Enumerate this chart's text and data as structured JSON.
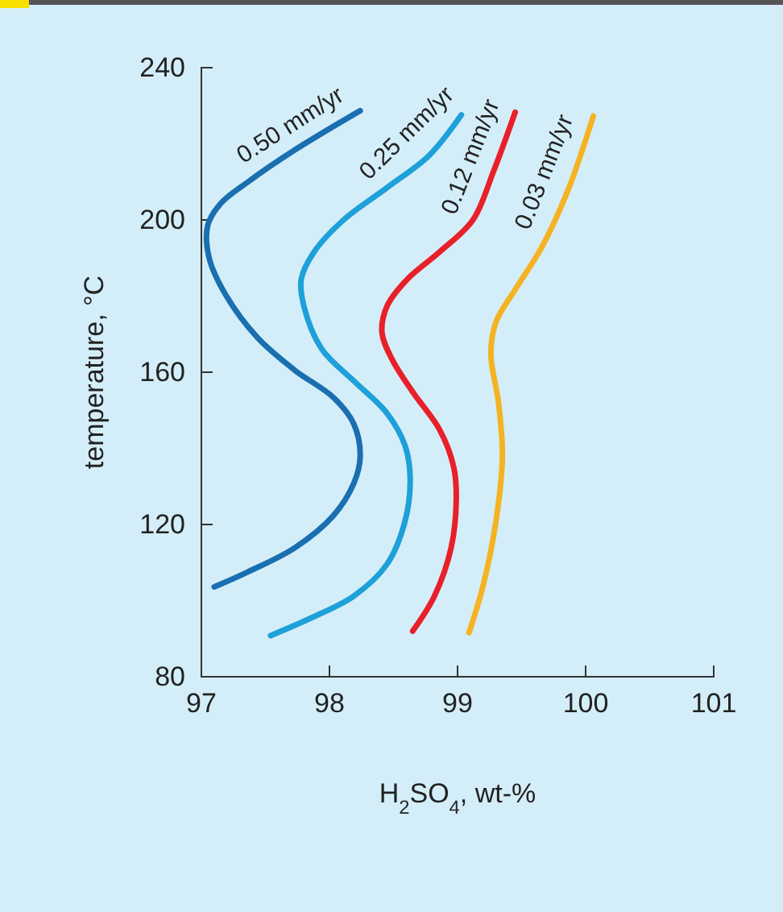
{
  "chart_data": {
    "type": "line",
    "xlabel": "H$_{2}$SO$_{4}$, wt-%",
    "ylabel": "temperature, °C",
    "xlim": [
      97,
      101
    ],
    "xticks": [
      97,
      98,
      99,
      100,
      101
    ],
    "ylim": [
      80,
      240
    ],
    "yticks": [
      80,
      120,
      160,
      200,
      240
    ],
    "grid": false,
    "legend": false,
    "marker": "none",
    "line_style": "solid",
    "series": [
      {
        "name": "0.50 mm/yr",
        "color": "#1a6fb0",
        "x": [
          97.1,
          97.36,
          97.73,
          98.03,
          98.19,
          98.24,
          98.19,
          98.03,
          97.73,
          97.44,
          97.19,
          97.06,
          97.05,
          97.15,
          97.36,
          97.73,
          98.24
        ],
        "values": [
          103.6,
          107.5,
          113.9,
          122.3,
          130.8,
          137.9,
          146.4,
          153.4,
          160.5,
          169.0,
          180.3,
          190.1,
          198.6,
          204.3,
          209.9,
          218.4,
          228.7
        ]
      },
      {
        "name": "0.25 mm/yr",
        "color": "#1ea0d8",
        "x": [
          97.54,
          97.86,
          98.19,
          98.45,
          98.59,
          98.63,
          98.59,
          98.45,
          98.19,
          97.94,
          97.8,
          97.78,
          97.88,
          98.11,
          98.45,
          98.78,
          99.03
        ],
        "values": [
          90.8,
          95.5,
          101.2,
          109.6,
          120.9,
          132.2,
          140.7,
          149.2,
          157.7,
          166.1,
          177.4,
          184.5,
          191.6,
          200.0,
          208.5,
          217.0,
          227.6
        ]
      },
      {
        "name": "0.12 mm/yr",
        "color": "#e8202a",
        "x": [
          98.65,
          98.82,
          98.95,
          98.99,
          98.97,
          98.86,
          98.65,
          98.49,
          98.41,
          98.45,
          98.61,
          98.86,
          99.12,
          99.28,
          99.45
        ],
        "values": [
          92.0,
          101.2,
          113.9,
          126.6,
          135.1,
          144.9,
          154.8,
          163.3,
          170.4,
          177.4,
          184.5,
          191.6,
          200.0,
          212.7,
          228.3
        ]
      },
      {
        "name": "0.03 mm/yr",
        "color": "#f5b323",
        "x": [
          99.09,
          99.2,
          99.3,
          99.35,
          99.32,
          99.26,
          99.3,
          99.45,
          99.66,
          99.87,
          100.06
        ],
        "values": [
          91.6,
          104.0,
          120.9,
          137.9,
          152.0,
          164.7,
          173.2,
          181.7,
          193.0,
          208.5,
          227.3
        ]
      }
    ]
  }
}
